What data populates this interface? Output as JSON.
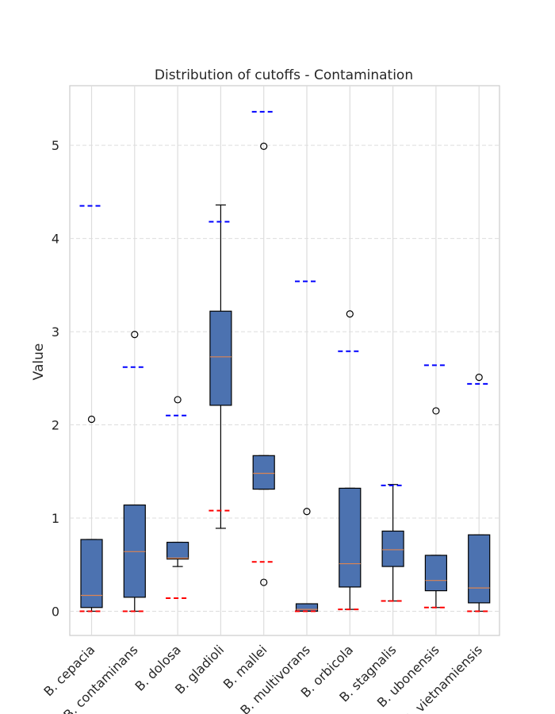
{
  "chart_data": {
    "type": "boxplot",
    "title": "Distribution of cutoffs - Contamination",
    "xlabel": "",
    "ylabel": "Value",
    "ylim": [
      -0.26,
      5.64
    ],
    "yticks": [
      0,
      1,
      2,
      3,
      4,
      5
    ],
    "grid": true,
    "categories": [
      "B. cepacia",
      "B. contaminans",
      "B. dolosa",
      "B. gladioli",
      "B. mallei",
      "B. multivorans",
      "B. orbicola",
      "B. stagnalis",
      "B. ubonensis",
      "B. vietnamiensis"
    ],
    "boxes": [
      {
        "whisker_low": 0.0,
        "q1": 0.04,
        "median": 0.17,
        "q3": 0.77,
        "whisker_high": 0.77,
        "outliers": [
          2.06
        ]
      },
      {
        "whisker_low": 0.0,
        "q1": 0.15,
        "median": 0.64,
        "q3": 1.14,
        "whisker_high": 1.14,
        "outliers": [
          2.97
        ]
      },
      {
        "whisker_low": 0.48,
        "q1": 0.56,
        "median": 0.57,
        "q3": 0.74,
        "whisker_high": 0.74,
        "outliers": [
          2.27
        ]
      },
      {
        "whisker_low": 0.89,
        "q1": 2.21,
        "median": 2.73,
        "q3": 3.22,
        "whisker_high": 4.36,
        "outliers": []
      },
      {
        "whisker_low": 1.31,
        "q1": 1.31,
        "median": 1.48,
        "q3": 1.67,
        "whisker_high": 1.67,
        "outliers": [
          4.99,
          0.31
        ]
      },
      {
        "whisker_low": 0.0,
        "q1": 0.0,
        "median": 0.02,
        "q3": 0.08,
        "whisker_high": 0.08,
        "outliers": [
          1.07
        ]
      },
      {
        "whisker_low": 0.02,
        "q1": 0.26,
        "median": 0.51,
        "q3": 1.32,
        "whisker_high": 1.32,
        "outliers": [
          3.19
        ]
      },
      {
        "whisker_low": 0.11,
        "q1": 0.48,
        "median": 0.66,
        "q3": 0.86,
        "whisker_high": 1.36,
        "outliers": []
      },
      {
        "whisker_low": 0.04,
        "q1": 0.22,
        "median": 0.33,
        "q3": 0.6,
        "whisker_high": 0.6,
        "outliers": [
          2.15
        ]
      },
      {
        "whisker_low": 0.0,
        "q1": 0.09,
        "median": 0.25,
        "q3": 0.82,
        "whisker_high": 0.82,
        "outliers": [
          2.51
        ]
      }
    ],
    "lower_cutoffs": [
      0.0,
      0.0,
      0.14,
      1.08,
      0.53,
      0.0,
      0.02,
      0.11,
      0.04,
      0.0
    ],
    "upper_cutoffs": [
      4.35,
      2.62,
      2.1,
      4.18,
      5.36,
      3.54,
      2.79,
      1.35,
      2.64,
      2.44
    ],
    "colors": {
      "box_fill": "#4c72b0",
      "median": "#dd8452",
      "lower_cutoff": "#ff0000",
      "upper_cutoff": "#0000ff",
      "grid": "#dddddd",
      "axes_edge": "#cccccc"
    }
  }
}
